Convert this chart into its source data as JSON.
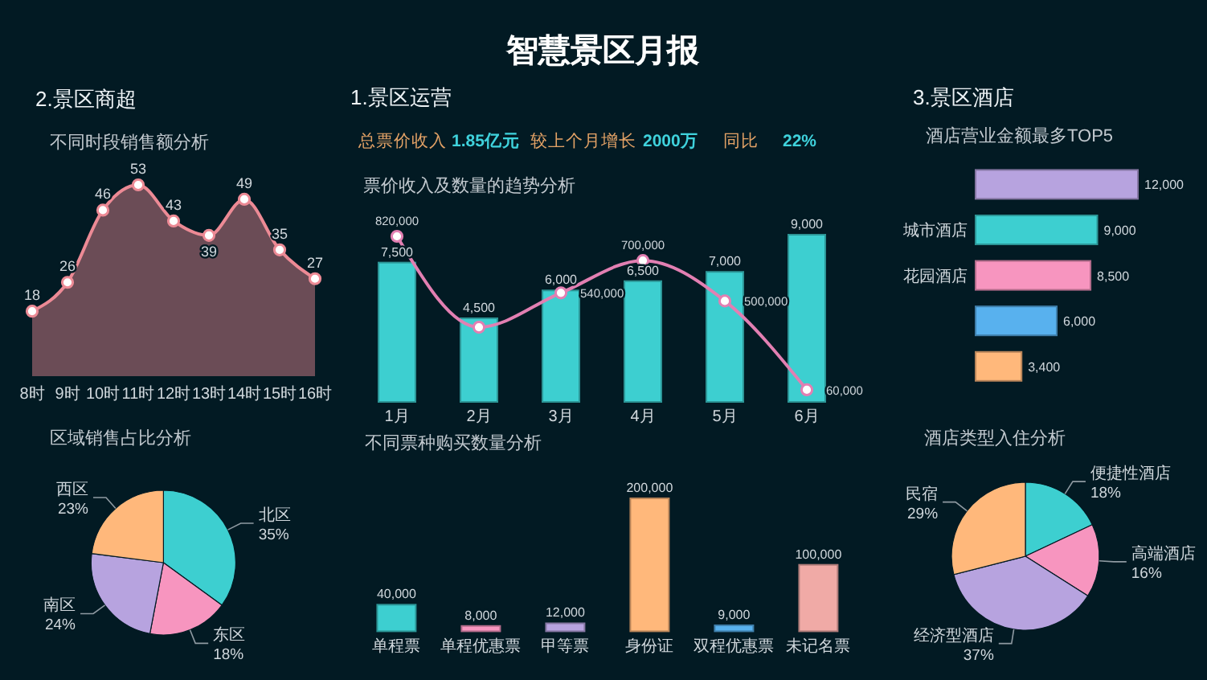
{
  "chart_data": [
    {
      "type": "other",
      "title": "智慧景区月报"
    },
    {
      "type": "other",
      "title": "2.景区商超"
    },
    {
      "type": "area",
      "title": "不同时段销售额分析",
      "categories": [
        "8时",
        "9时",
        "10时",
        "11时",
        "12时",
        "13时",
        "14时",
        "15时",
        "16时"
      ],
      "values": [
        18,
        26,
        46,
        53,
        43,
        39,
        49,
        35,
        27
      ],
      "color": "#ec8a95",
      "marker": "circle",
      "data_labels": true
    },
    {
      "type": "other",
      "title": "1.景区运营",
      "annotations": [
        "总票价收入",
        "1.85亿元",
        "较上个月增长",
        "2000万",
        "同比",
        "22%"
      ]
    },
    {
      "type": "bar",
      "title": "票价收入及数量的趋势分析",
      "categories": [
        "1月",
        "2月",
        "3月",
        "4月",
        "5月",
        "6月"
      ],
      "marker": "circle",
      "series": [
        {
          "color": "#3dcfd0",
          "values": [
            7500,
            4500,
            6000,
            6500,
            7000,
            9000
          ],
          "value_labels": [
            "7,500",
            "4,500",
            "6,000",
            "6,500",
            "7,000",
            "9,000"
          ]
        },
        {
          "type": "line",
          "axis": "y2",
          "color": "#e27fb2",
          "values": [
            820000,
            370000,
            540000,
            700000,
            500000,
            60000
          ],
          "value_labels": [
            "820,000",
            null,
            "540,000",
            "700,000",
            "500,000",
            "60,000"
          ]
        }
      ]
    },
    {
      "type": "other",
      "title": "3.景区酒店"
    },
    {
      "type": "bar",
      "orientation": "horizontal",
      "title": "酒店营业金额最多TOP5",
      "categories": [
        null,
        "城市酒店",
        "花园酒店",
        null,
        null
      ],
      "values": [
        12000,
        9000,
        8500,
        6000,
        3400
      ],
      "colors": [
        "#b7a3df",
        "#3dcfd0",
        "#f795bf",
        "#58b1ee",
        "#ffb87b"
      ],
      "value_labels": [
        "12,000",
        "9,000",
        "8,500",
        "6,000",
        "3,400"
      ]
    },
    {
      "type": "pie",
      "title": "区域销售占比分析",
      "categories": [
        "北区",
        "东区",
        "南区",
        "西区"
      ],
      "values": [
        35,
        18,
        24,
        23
      ],
      "colors": [
        "#3dcfd0",
        "#f795bf",
        "#b7a3df",
        "#ffb87b"
      ],
      "value_labels": [
        "35%",
        "18%",
        "24%",
        "23%"
      ]
    },
    {
      "type": "bar",
      "title": "不同票种购买数量分析",
      "categories": [
        "单程票",
        "单程优惠票",
        "甲等票",
        "身份证",
        "双程优惠票",
        "未记名票"
      ],
      "values": [
        40000,
        8000,
        12000,
        200000,
        9000,
        100000
      ],
      "colors": [
        "#3dcfd0",
        "#f795bf",
        "#b7a3df",
        "#ffb87b",
        "#58b1ee",
        "#f0aaa6"
      ],
      "value_labels": [
        "40,000",
        "8,000",
        "12,000",
        "200,000",
        "9,000",
        "100,000"
      ]
    },
    {
      "type": "pie",
      "title": "酒店类型入住分析",
      "categories": [
        "便捷性酒店",
        "高端酒店",
        "经济型酒店",
        "民宿"
      ],
      "values": [
        18,
        16,
        37,
        29
      ],
      "colors": [
        "#3dcfd0",
        "#f795bf",
        "#b7a3df",
        "#ffb87b"
      ],
      "value_labels": [
        "18%",
        "16%",
        "37%",
        "29%"
      ]
    }
  ]
}
